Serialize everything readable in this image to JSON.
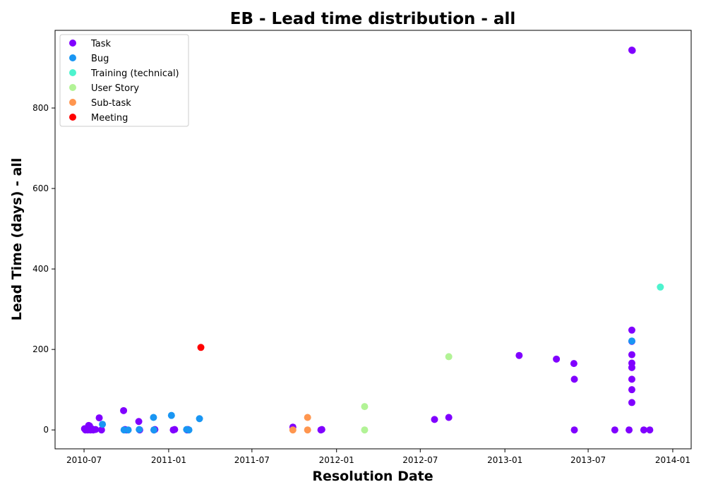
{
  "chart_data": {
    "type": "scatter",
    "title": "EB - Lead time distribution - all",
    "xlabel": "Resolution Date",
    "ylabel": "Lead Time (days) - all",
    "x_scale": "date",
    "xlim": [
      "2010-04-29",
      "2014-02-10"
    ],
    "ylim": [
      -47,
      993
    ],
    "x_ticks": [
      "2010-07-01",
      "2011-01-01",
      "2011-07-01",
      "2012-01-01",
      "2012-07-01",
      "2013-01-01",
      "2013-07-01",
      "2014-01-01"
    ],
    "x_tick_labels": [
      "2010-07",
      "2011-01",
      "2011-07",
      "2012-01",
      "2012-07",
      "2013-01",
      "2013-07",
      "2014-01"
    ],
    "y_ticks": [
      0,
      200,
      400,
      600,
      800
    ],
    "y_tick_labels": [
      "0",
      "200",
      "400",
      "600",
      "800"
    ],
    "grid": false,
    "legend_position": "top-left",
    "series": [
      {
        "name": "Task",
        "color": "#8000ff",
        "points": [
          {
            "x": "2010-07-02",
            "y": 3
          },
          {
            "x": "2010-07-04",
            "y": 0
          },
          {
            "x": "2010-07-06",
            "y": 2
          },
          {
            "x": "2010-07-09",
            "y": 0
          },
          {
            "x": "2010-07-11",
            "y": 11
          },
          {
            "x": "2010-07-13",
            "y": 10
          },
          {
            "x": "2010-07-15",
            "y": 0
          },
          {
            "x": "2010-07-19",
            "y": 2
          },
          {
            "x": "2010-07-21",
            "y": 0
          },
          {
            "x": "2010-07-26",
            "y": 1
          },
          {
            "x": "2010-08-03",
            "y": 30
          },
          {
            "x": "2010-08-08",
            "y": 0
          },
          {
            "x": "2010-09-25",
            "y": 48
          },
          {
            "x": "2010-09-28",
            "y": 1
          },
          {
            "x": "2010-10-01",
            "y": 0
          },
          {
            "x": "2010-10-28",
            "y": 21
          },
          {
            "x": "2010-10-30",
            "y": 0
          },
          {
            "x": "2010-11-30",
            "y": 0
          },
          {
            "x": "2010-12-02",
            "y": 1
          },
          {
            "x": "2011-01-11",
            "y": 0
          },
          {
            "x": "2011-01-14",
            "y": 1
          },
          {
            "x": "2011-02-10",
            "y": 0
          },
          {
            "x": "2011-02-12",
            "y": 1
          },
          {
            "x": "2011-09-28",
            "y": 7
          },
          {
            "x": "2011-11-28",
            "y": 0
          },
          {
            "x": "2011-11-30",
            "y": 1
          },
          {
            "x": "2012-08-01",
            "y": 26
          },
          {
            "x": "2012-09-01",
            "y": 31
          },
          {
            "x": "2013-02-01",
            "y": 185
          },
          {
            "x": "2013-04-23",
            "y": 176
          },
          {
            "x": "2013-05-31",
            "y": 165
          },
          {
            "x": "2013-06-01",
            "y": 126
          },
          {
            "x": "2013-06-01",
            "y": 0
          },
          {
            "x": "2013-08-28",
            "y": 0
          },
          {
            "x": "2013-09-28",
            "y": 0
          },
          {
            "x": "2013-10-04",
            "y": 944
          },
          {
            "x": "2013-10-05",
            "y": 943
          },
          {
            "x": "2013-10-04",
            "y": 248
          },
          {
            "x": "2013-10-04",
            "y": 220
          },
          {
            "x": "2013-10-04",
            "y": 187
          },
          {
            "x": "2013-10-04",
            "y": 166
          },
          {
            "x": "2013-10-04",
            "y": 155
          },
          {
            "x": "2013-10-04",
            "y": 126
          },
          {
            "x": "2013-10-04",
            "y": 100
          },
          {
            "x": "2013-10-04",
            "y": 68
          },
          {
            "x": "2013-10-30",
            "y": 0
          },
          {
            "x": "2013-11-12",
            "y": 0
          }
        ]
      },
      {
        "name": "Bug",
        "color": "#1996f3",
        "points": [
          {
            "x": "2010-08-10",
            "y": 14
          },
          {
            "x": "2010-09-26",
            "y": 0
          },
          {
            "x": "2010-10-05",
            "y": 0
          },
          {
            "x": "2010-10-29",
            "y": 1
          },
          {
            "x": "2010-11-29",
            "y": 31
          },
          {
            "x": "2010-11-30",
            "y": 0
          },
          {
            "x": "2011-01-07",
            "y": 36
          },
          {
            "x": "2011-02-09",
            "y": 1
          },
          {
            "x": "2011-02-14",
            "y": 0
          },
          {
            "x": "2011-03-09",
            "y": 28
          },
          {
            "x": "2013-10-04",
            "y": 221
          }
        ]
      },
      {
        "name": "Training (technical)",
        "color": "#4df3ce",
        "points": [
          {
            "x": "2013-12-05",
            "y": 355
          }
        ]
      },
      {
        "name": "User Story",
        "color": "#b2f396",
        "points": [
          {
            "x": "2012-03-02",
            "y": 58
          },
          {
            "x": "2012-03-02",
            "y": 0
          },
          {
            "x": "2012-09-01",
            "y": 182
          }
        ]
      },
      {
        "name": "Sub-task",
        "color": "#ff964f",
        "points": [
          {
            "x": "2011-09-28",
            "y": 0
          },
          {
            "x": "2011-10-30",
            "y": 31
          },
          {
            "x": "2011-10-30",
            "y": 0
          }
        ]
      },
      {
        "name": "Meeting",
        "color": "#ff0000",
        "points": [
          {
            "x": "2011-03-12",
            "y": 205
          }
        ]
      }
    ]
  }
}
